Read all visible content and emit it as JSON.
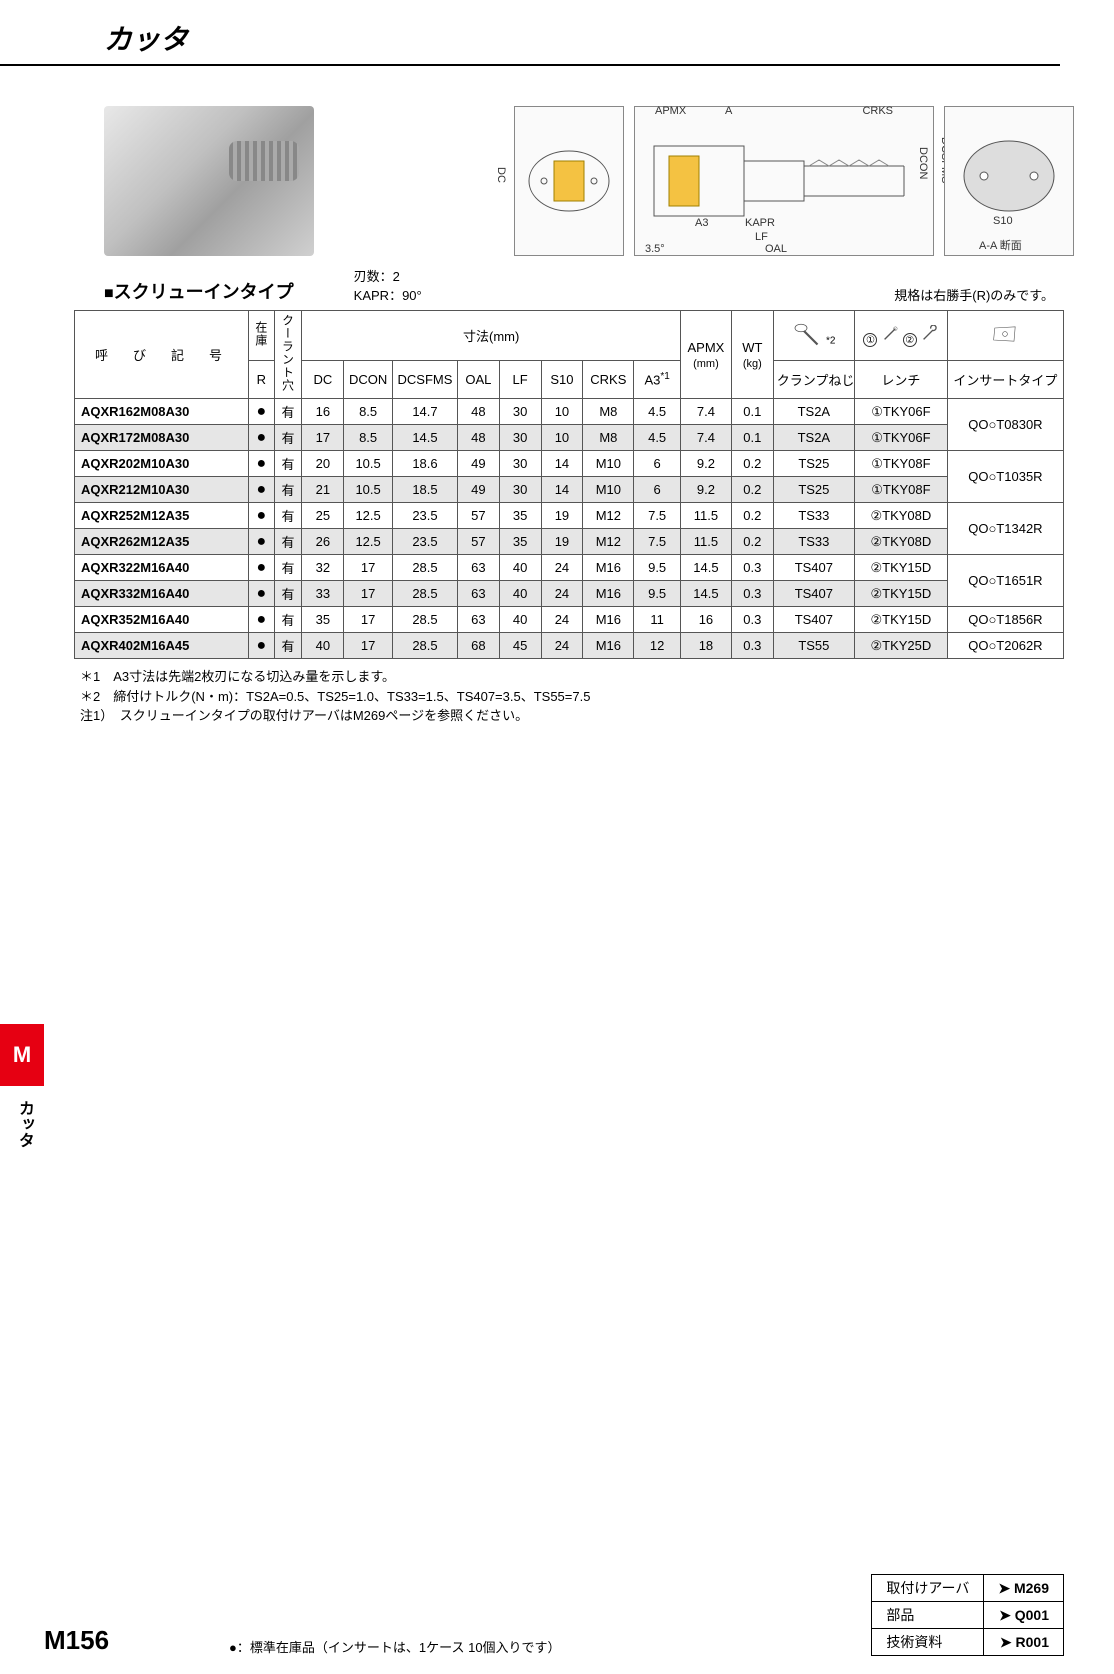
{
  "page_title": "カッタ",
  "section_title": "スクリューインタイプ",
  "spec_line1": "刃数：2",
  "spec_line2": "KAPR：90°",
  "right_note": "規格は右勝手(R)のみです。",
  "diagram_labels": {
    "apmx": "APMX",
    "a": "A",
    "crks": "CRKS",
    "dc": "DC",
    "dcon": "DCON",
    "dcsfms": "DCSFMS",
    "a3": "A3",
    "kapr": "KAPR",
    "lf": "LF",
    "oal": "OAL",
    "s10": "S10",
    "aa": "A-A 断面",
    "angle": "3.5°"
  },
  "table": {
    "header": {
      "name": "呼　び　記　号",
      "stock": "在庫",
      "coolant": "クーラント穴",
      "r": "R",
      "dims": "寸法(mm)",
      "dc": "DC",
      "dcon": "DCON",
      "dcsfms": "DCSFMS",
      "oal": "OAL",
      "lf": "LF",
      "s10": "S10",
      "crks": "CRKS",
      "a3": "A3",
      "a3_sup": "*1",
      "apmx": "APMX",
      "apmx_unit": "(mm)",
      "wt": "WT",
      "wt_unit": "(kg)",
      "star2": "*2",
      "clamp": "クランプねじ",
      "wrench": "レンチ",
      "insert": "インサートタイプ",
      "c1": "①",
      "c2": "②"
    },
    "rows": [
      {
        "name": "AQXR162M08A30",
        "r": "●",
        "cool": "有",
        "dc": "16",
        "dcon": "8.5",
        "dcsfms": "14.7",
        "oal": "48",
        "lf": "30",
        "s10": "10",
        "crks": "M8",
        "a3": "4.5",
        "apmx": "7.4",
        "wt": "0.1",
        "clamp": "TS2A",
        "wrench": "①TKY06F",
        "shade": false
      },
      {
        "name": "AQXR172M08A30",
        "r": "●",
        "cool": "有",
        "dc": "17",
        "dcon": "8.5",
        "dcsfms": "14.5",
        "oal": "48",
        "lf": "30",
        "s10": "10",
        "crks": "M8",
        "a3": "4.5",
        "apmx": "7.4",
        "wt": "0.1",
        "clamp": "TS2A",
        "wrench": "①TKY06F",
        "shade": true
      },
      {
        "name": "AQXR202M10A30",
        "r": "●",
        "cool": "有",
        "dc": "20",
        "dcon": "10.5",
        "dcsfms": "18.6",
        "oal": "49",
        "lf": "30",
        "s10": "14",
        "crks": "M10",
        "a3": "6",
        "apmx": "9.2",
        "wt": "0.2",
        "clamp": "TS25",
        "wrench": "①TKY08F",
        "shade": false
      },
      {
        "name": "AQXR212M10A30",
        "r": "●",
        "cool": "有",
        "dc": "21",
        "dcon": "10.5",
        "dcsfms": "18.5",
        "oal": "49",
        "lf": "30",
        "s10": "14",
        "crks": "M10",
        "a3": "6",
        "apmx": "9.2",
        "wt": "0.2",
        "clamp": "TS25",
        "wrench": "①TKY08F",
        "shade": true
      },
      {
        "name": "AQXR252M12A35",
        "r": "●",
        "cool": "有",
        "dc": "25",
        "dcon": "12.5",
        "dcsfms": "23.5",
        "oal": "57",
        "lf": "35",
        "s10": "19",
        "crks": "M12",
        "a3": "7.5",
        "apmx": "11.5",
        "wt": "0.2",
        "clamp": "TS33",
        "wrench": "②TKY08D",
        "shade": false
      },
      {
        "name": "AQXR262M12A35",
        "r": "●",
        "cool": "有",
        "dc": "26",
        "dcon": "12.5",
        "dcsfms": "23.5",
        "oal": "57",
        "lf": "35",
        "s10": "19",
        "crks": "M12",
        "a3": "7.5",
        "apmx": "11.5",
        "wt": "0.2",
        "clamp": "TS33",
        "wrench": "②TKY08D",
        "shade": true
      },
      {
        "name": "AQXR322M16A40",
        "r": "●",
        "cool": "有",
        "dc": "32",
        "dcon": "17",
        "dcsfms": "28.5",
        "oal": "63",
        "lf": "40",
        "s10": "24",
        "crks": "M16",
        "a3": "9.5",
        "apmx": "14.5",
        "wt": "0.3",
        "clamp": "TS407",
        "wrench": "②TKY15D",
        "shade": false
      },
      {
        "name": "AQXR332M16A40",
        "r": "●",
        "cool": "有",
        "dc": "33",
        "dcon": "17",
        "dcsfms": "28.5",
        "oal": "63",
        "lf": "40",
        "s10": "24",
        "crks": "M16",
        "a3": "9.5",
        "apmx": "14.5",
        "wt": "0.3",
        "clamp": "TS407",
        "wrench": "②TKY15D",
        "shade": true
      },
      {
        "name": "AQXR352M16A40",
        "r": "●",
        "cool": "有",
        "dc": "35",
        "dcon": "17",
        "dcsfms": "28.5",
        "oal": "63",
        "lf": "40",
        "s10": "24",
        "crks": "M16",
        "a3": "11",
        "apmx": "16",
        "wt": "0.3",
        "clamp": "TS407",
        "wrench": "②TKY15D",
        "shade": false
      },
      {
        "name": "AQXR402M16A45",
        "r": "●",
        "cool": "有",
        "dc": "40",
        "dcon": "17",
        "dcsfms": "28.5",
        "oal": "68",
        "lf": "45",
        "s10": "24",
        "crks": "M16",
        "a3": "12",
        "apmx": "18",
        "wt": "0.3",
        "clamp": "TS55",
        "wrench": "②TKY25D",
        "shade": true
      }
    ],
    "insert_types": [
      {
        "span": 2,
        "label": "QO○T0830R"
      },
      {
        "span": 2,
        "label": "QO○T1035R"
      },
      {
        "span": 2,
        "label": "QO○T1342R"
      },
      {
        "span": 2,
        "label": "QO○T1651R"
      },
      {
        "span": 1,
        "label": "QO○T1856R"
      },
      {
        "span": 1,
        "label": "QO○T2062R"
      }
    ]
  },
  "footnotes": [
    "＊1　A3寸法は先端2枚刃になる切込み量を示します。",
    "＊2　締付けトルク(N・m)：TS2A=0.5、TS25=1.0、TS33=1.5、TS407=3.5、TS55=7.5",
    "注1）　スクリューインタイプの取付けアーバはM269ページを参照ください。"
  ],
  "side": {
    "letter": "M",
    "label": "カッタ"
  },
  "footer": {
    "page": "M156",
    "std_note": "●：標準在庫品（インサートは、1ケース 10個入りです）",
    "refs": [
      {
        "k": "取付けアーバ",
        "v": "➤ M269"
      },
      {
        "k": "部品",
        "v": "➤ Q001"
      },
      {
        "k": "技術資料",
        "v": "➤ R001"
      }
    ]
  },
  "colors": {
    "accent": "#e60012",
    "shade": "#e6e6e6",
    "border": "#555"
  }
}
